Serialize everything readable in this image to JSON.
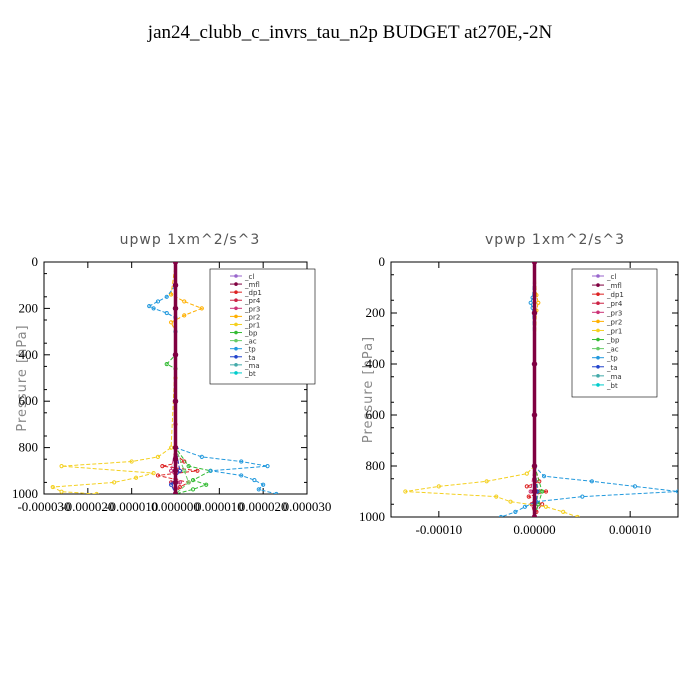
{
  "title": "jan24_clubb_c_invrs_tau_n2p  BUDGET at270E,-2N",
  "chart_data": [
    {
      "type": "line",
      "title": "upwp   1xm^2/s^3",
      "ylabel": "Pressure [hPa]",
      "ylim": [
        1000,
        0
      ],
      "xlim": [
        -3e-05,
        3e-05
      ],
      "yticks": [
        0,
        200,
        400,
        600,
        800,
        1000
      ],
      "xticks": [
        -3e-05,
        -2e-05,
        -1e-05,
        0.0,
        1e-05,
        2e-05,
        3e-05
      ],
      "xtick_labels": [
        "-0.000030",
        "-0.000020",
        "-0.000010",
        "0.000000",
        "0.000010",
        "0.000020",
        "0.000030"
      ],
      "legend": [
        "_cl",
        "_mfl",
        "_dp1",
        "_pr4",
        "_pr3",
        "_pr2",
        "_pr1",
        "_bp",
        "_ac",
        "_tp",
        "_ta",
        "_ma",
        "_bt"
      ],
      "series": [
        {
          "name": "_cl",
          "color": "#9966cc",
          "p": [
            0,
            100,
            200,
            400,
            600,
            800,
            850,
            900,
            950,
            1000
          ],
          "x": [
            0,
            0,
            0,
            0,
            0,
            0,
            0,
            0,
            0,
            0
          ]
        },
        {
          "name": "_mfl",
          "color": "#800040",
          "p": [
            0,
            100,
            200,
            400,
            600,
            800,
            850,
            900,
            950,
            1000
          ],
          "x": [
            0,
            0,
            0,
            0,
            0,
            0,
            0,
            0,
            0,
            0
          ]
        },
        {
          "name": "_dp1",
          "color": "#dd2222",
          "p": [
            0,
            200,
            700,
            830,
            860,
            880,
            900,
            920,
            950,
            970,
            1000
          ],
          "x": [
            0,
            0,
            0,
            0,
            2e-06,
            -3e-06,
            5e-06,
            -4e-06,
            3e-06,
            1e-06,
            0
          ]
        },
        {
          "name": "_pr4",
          "color": "#cc2244",
          "p": [
            0,
            400,
            800,
            900,
            950,
            1000
          ],
          "x": [
            0,
            0,
            0,
            1e-06,
            -1e-06,
            0
          ]
        },
        {
          "name": "_pr3",
          "color": "#cc3377",
          "p": [
            0,
            400,
            800,
            900,
            950,
            1000
          ],
          "x": [
            0,
            0,
            0,
            -1e-06,
            1e-06,
            0
          ]
        },
        {
          "name": "_pr2",
          "color": "#ffb000",
          "p": [
            0,
            140,
            170,
            200,
            230,
            260,
            300,
            500,
            800,
            1000
          ],
          "x": [
            0,
            -1e-06,
            2e-06,
            6e-06,
            2e-06,
            -1e-06,
            0,
            0,
            0,
            0
          ]
        },
        {
          "name": "_pr1",
          "color": "#f4d020",
          "p": [
            0,
            100,
            200,
            400,
            800,
            840,
            860,
            880,
            910,
            930,
            950,
            970,
            990,
            1000
          ],
          "x": [
            0,
            0,
            0,
            0,
            -1e-06,
            -4e-06,
            -1e-05,
            -2.6e-05,
            -5e-06,
            -9e-06,
            -1.4e-05,
            -2.8e-05,
            -2.6e-05,
            -1.8e-05
          ]
        },
        {
          "name": "_bp",
          "color": "#33bb33",
          "p": [
            0,
            400,
            440,
            460,
            800,
            880,
            900,
            940,
            960,
            980,
            1000
          ],
          "x": [
            0,
            0,
            -2e-06,
            0,
            0,
            3e-06,
            8e-06,
            4e-06,
            7e-06,
            4e-06,
            0
          ]
        },
        {
          "name": "_ac",
          "color": "#66cc66",
          "p": [
            0,
            400,
            800,
            900,
            950,
            1000
          ],
          "x": [
            0,
            0,
            0,
            2e-06,
            3e-06,
            0
          ]
        },
        {
          "name": "_tp",
          "color": "#2299dd",
          "p": [
            0,
            100,
            150,
            170,
            190,
            200,
            220,
            240,
            300,
            800,
            840,
            860,
            880,
            900,
            920,
            940,
            960,
            980,
            1000
          ],
          "x": [
            0,
            0,
            -2e-06,
            -4e-06,
            -6e-06,
            -5e-06,
            -2e-06,
            0,
            0,
            0,
            6e-06,
            1.5e-05,
            2.1e-05,
            8e-06,
            1.5e-05,
            1.8e-05,
            2e-05,
            1.9e-05,
            2.3e-05
          ]
        },
        {
          "name": "_ta",
          "color": "#2244cc",
          "p": [
            0,
            400,
            800,
            900,
            960,
            1000
          ],
          "x": [
            0,
            0,
            0,
            1e-06,
            -1e-06,
            0
          ]
        },
        {
          "name": "_ma",
          "color": "#44aaaa",
          "p": [
            0,
            400,
            800,
            1000
          ],
          "x": [
            0,
            0,
            0,
            0
          ]
        },
        {
          "name": "_bt",
          "color": "#00cccc",
          "p": [
            0,
            400,
            800,
            1000
          ],
          "x": [
            0,
            0,
            0,
            0
          ]
        }
      ]
    },
    {
      "type": "line",
      "title": "vpwp   1xm^2/s^3",
      "ylabel": "Pressure [hPa]",
      "ylim": [
        1000,
        0
      ],
      "xlim": [
        -0.00015,
        0.00015
      ],
      "yticks": [
        0,
        200,
        400,
        600,
        800,
        1000
      ],
      "xticks": [
        -0.0001,
        0.0,
        0.0001
      ],
      "xtick_labels": [
        "-0.00010",
        "0.00000",
        "0.00010"
      ],
      "legend": [
        "_cl",
        "_mfl",
        "_dp1",
        "_pr4",
        "_pr3",
        "_pr2",
        "_pr1",
        "_bp",
        "_ac",
        "_tp",
        "_ta",
        "_ma",
        "_bt"
      ],
      "series": [
        {
          "name": "_cl",
          "color": "#9966cc",
          "p": [
            0,
            200,
            400,
            600,
            800,
            900,
            1000
          ],
          "x": [
            0,
            0,
            0,
            0,
            0,
            0,
            0
          ]
        },
        {
          "name": "_mfl",
          "color": "#800040",
          "p": [
            0,
            200,
            400,
            600,
            800,
            900,
            1000
          ],
          "x": [
            0,
            0,
            0,
            0,
            0,
            0,
            0
          ]
        },
        {
          "name": "_dp1",
          "color": "#dd2222",
          "p": [
            0,
            800,
            860,
            880,
            900,
            920,
            950,
            980,
            1000
          ],
          "x": [
            0,
            0,
            5e-06,
            -8e-06,
            1.2e-05,
            -6e-06,
            8e-06,
            2e-06,
            0
          ]
        },
        {
          "name": "_pr4",
          "color": "#cc2244",
          "p": [
            0,
            800,
            900,
            950,
            1000
          ],
          "x": [
            0,
            0,
            3e-06,
            -3e-06,
            0
          ]
        },
        {
          "name": "_pr3",
          "color": "#cc3377",
          "p": [
            0,
            800,
            900,
            950,
            1000
          ],
          "x": [
            0,
            0,
            -4e-06,
            4e-06,
            0
          ]
        },
        {
          "name": "_pr2",
          "color": "#ffb000",
          "p": [
            0,
            130,
            160,
            190,
            400,
            800,
            1000
          ],
          "x": [
            0,
            2e-06,
            4e-06,
            2e-06,
            0,
            0,
            0
          ]
        },
        {
          "name": "_pr1",
          "color": "#f4d020",
          "p": [
            0,
            400,
            800,
            830,
            860,
            880,
            900,
            920,
            940,
            960,
            980,
            1000
          ],
          "x": [
            0,
            0,
            0,
            -8e-06,
            -5e-05,
            -0.0001,
            -0.000135,
            -4e-05,
            -2.5e-05,
            1.2e-05,
            3e-05,
            4.5e-05
          ]
        },
        {
          "name": "_bp",
          "color": "#33bb33",
          "p": [
            0,
            800,
            900,
            950,
            1000
          ],
          "x": [
            0,
            0,
            8e-06,
            4e-06,
            0
          ]
        },
        {
          "name": "_ac",
          "color": "#66cc66",
          "p": [
            0,
            800,
            900,
            1000
          ],
          "x": [
            0,
            0,
            4e-06,
            0
          ]
        },
        {
          "name": "_tp",
          "color": "#2299dd",
          "p": [
            0,
            140,
            160,
            180,
            400,
            800,
            840,
            860,
            880,
            900,
            920,
            940,
            960,
            980,
            1000
          ],
          "x": [
            0,
            -2e-06,
            -4e-06,
            -2e-06,
            0,
            0,
            1e-05,
            6e-05,
            0.000105,
            0.00015,
            5e-05,
            2e-06,
            -1e-05,
            -2e-05,
            -3.5e-05
          ]
        },
        {
          "name": "_ta",
          "color": "#2244cc",
          "p": [
            0,
            800,
            900,
            1000
          ],
          "x": [
            0,
            0,
            3e-06,
            0
          ]
        },
        {
          "name": "_ma",
          "color": "#44aaaa",
          "p": [
            0,
            800,
            1000
          ],
          "x": [
            0,
            0,
            0
          ]
        },
        {
          "name": "_bt",
          "color": "#00cccc",
          "p": [
            0,
            800,
            1000
          ],
          "x": [
            0,
            0,
            0
          ]
        }
      ]
    }
  ]
}
